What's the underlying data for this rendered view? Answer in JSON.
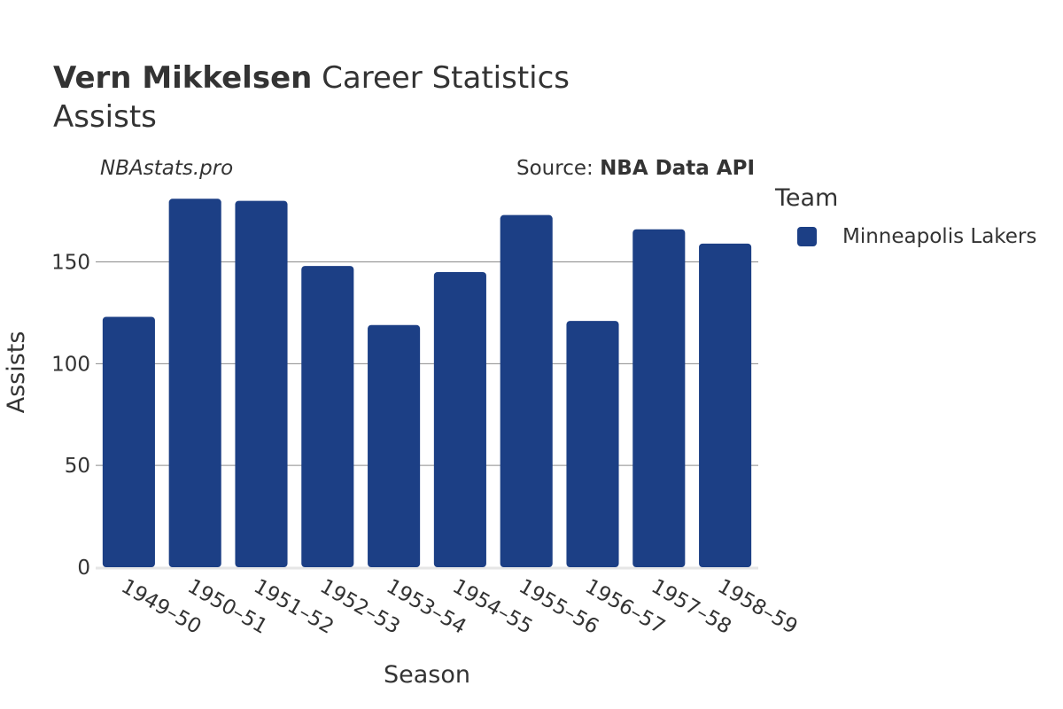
{
  "header": {
    "player_name": "Vern Mikkelsen",
    "title_rest": "Career Statistics",
    "subtitle": "Assists",
    "watermark": "NBAstats.pro",
    "source_prefix": "Source:",
    "source_name": "NBA Data API"
  },
  "legend": {
    "title": "Team",
    "items": [
      {
        "label": "Minneapolis Lakers",
        "color": "#1c3f85"
      }
    ]
  },
  "chart_data": {
    "type": "bar",
    "title": "Vern Mikkelsen Career Statistics",
    "subtitle": "Assists",
    "xlabel": "Season",
    "ylabel": "Assists",
    "categories": [
      "1949–50",
      "1950–51",
      "1951–52",
      "1952–53",
      "1953–54",
      "1954–55",
      "1955–56",
      "1956–57",
      "1957–58",
      "1958–59"
    ],
    "series": [
      {
        "name": "Minneapolis Lakers",
        "color": "#1c3f85",
        "values": [
          123,
          181,
          180,
          148,
          119,
          145,
          173,
          121,
          166,
          159
        ]
      }
    ],
    "ylim": [
      0,
      182
    ],
    "yticks": [
      0,
      50,
      100,
      150
    ],
    "grid": true,
    "legend_position": "right"
  }
}
